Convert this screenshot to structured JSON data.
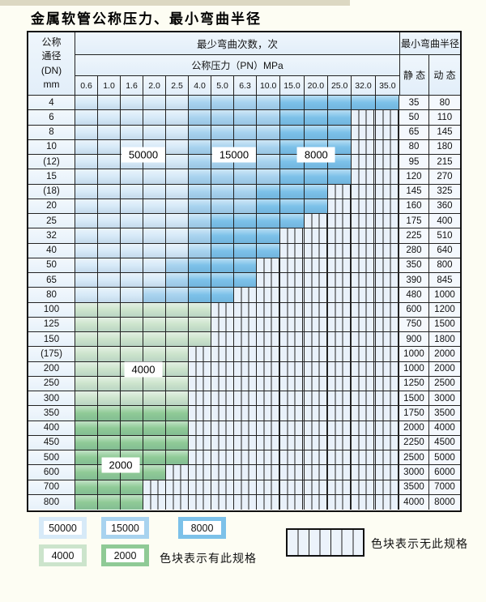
{
  "title": "金属软管公称压力、最小弯曲半径",
  "header": {
    "dn_label_lines": [
      "公称",
      "通径",
      "(DN)",
      "mm"
    ],
    "bend_cycles_label": "最少弯曲次数，次",
    "pressure_label": "公称压力（PN）MPa",
    "radius_label": "最小弯曲半径",
    "static_label": "静 态",
    "dynamic_label": "动 态",
    "pressures": [
      "0.6",
      "1.0",
      "1.6",
      "2.0",
      "2.5",
      "4.0",
      "5.0",
      "6.3",
      "10.0",
      "15.0",
      "20.0",
      "25.0",
      "32.0",
      "35.0"
    ]
  },
  "colors": {
    "c50000": "#d7eaf8",
    "c15000": "#a8d3ef",
    "c8000": "#7cc1e9",
    "c4000": "#cce4cc",
    "c2000": "#8fca96",
    "hatch": "#e9f1fa",
    "header": "#e2eef9",
    "grid": "#222222"
  },
  "rows": [
    {
      "dn": "4",
      "static": "35",
      "dynamic": "80",
      "bands": [
        [
          "c50000",
          5
        ],
        [
          "c15000",
          4
        ],
        [
          "c8000",
          5
        ]
      ]
    },
    {
      "dn": "6",
      "static": "50",
      "dynamic": "110",
      "bands": [
        [
          "c50000",
          5
        ],
        [
          "c15000",
          4
        ],
        [
          "c8000",
          3
        ]
      ]
    },
    {
      "dn": "8",
      "static": "65",
      "dynamic": "145",
      "bands": [
        [
          "c50000",
          5
        ],
        [
          "c15000",
          4
        ],
        [
          "c8000",
          3
        ]
      ]
    },
    {
      "dn": "10",
      "static": "80",
      "dynamic": "180",
      "bands": [
        [
          "c50000",
          5
        ],
        [
          "c15000",
          4
        ],
        [
          "c8000",
          3
        ]
      ]
    },
    {
      "dn": "(12)",
      "static": "95",
      "dynamic": "215",
      "bands": [
        [
          "c50000",
          5
        ],
        [
          "c15000",
          4
        ],
        [
          "c8000",
          3
        ]
      ]
    },
    {
      "dn": "15",
      "static": "120",
      "dynamic": "270",
      "bands": [
        [
          "c50000",
          5
        ],
        [
          "c15000",
          4
        ],
        [
          "c8000",
          3
        ]
      ]
    },
    {
      "dn": "(18)",
      "static": "145",
      "dynamic": "325",
      "bands": [
        [
          "c50000",
          5
        ],
        [
          "c15000",
          3
        ],
        [
          "c8000",
          3
        ]
      ]
    },
    {
      "dn": "20",
      "static": "160",
      "dynamic": "360",
      "bands": [
        [
          "c50000",
          5
        ],
        [
          "c15000",
          3
        ],
        [
          "c8000",
          3
        ]
      ]
    },
    {
      "dn": "25",
      "static": "175",
      "dynamic": "400",
      "bands": [
        [
          "c50000",
          5
        ],
        [
          "c15000",
          1
        ],
        [
          "c8000",
          4
        ]
      ]
    },
    {
      "dn": "32",
      "static": "225",
      "dynamic": "510",
      "bands": [
        [
          "c50000",
          5
        ],
        [
          "c15000",
          1
        ],
        [
          "c8000",
          3
        ]
      ]
    },
    {
      "dn": "40",
      "static": "280",
      "dynamic": "640",
      "bands": [
        [
          "c50000",
          5
        ],
        [
          "c15000",
          1
        ],
        [
          "c8000",
          3
        ]
      ]
    },
    {
      "dn": "50",
      "static": "350",
      "dynamic": "800",
      "bands": [
        [
          "c50000",
          4
        ],
        [
          "c15000",
          1
        ],
        [
          "c8000",
          3
        ]
      ]
    },
    {
      "dn": "65",
      "static": "390",
      "dynamic": "845",
      "bands": [
        [
          "c50000",
          4
        ],
        [
          "c15000",
          1
        ],
        [
          "c8000",
          3
        ]
      ]
    },
    {
      "dn": "80",
      "static": "480",
      "dynamic": "1000",
      "bands": [
        [
          "c50000",
          3
        ],
        [
          "c15000",
          2
        ],
        [
          "c8000",
          2
        ]
      ]
    },
    {
      "dn": "100",
      "static": "600",
      "dynamic": "1200",
      "bands": [
        [
          "c4000",
          6
        ]
      ]
    },
    {
      "dn": "125",
      "static": "750",
      "dynamic": "1500",
      "bands": [
        [
          "c4000",
          6
        ]
      ]
    },
    {
      "dn": "150",
      "static": "900",
      "dynamic": "1800",
      "bands": [
        [
          "c4000",
          6
        ]
      ]
    },
    {
      "dn": "(175)",
      "static": "1000",
      "dynamic": "2000",
      "bands": [
        [
          "c4000",
          5
        ]
      ]
    },
    {
      "dn": "200",
      "static": "1000",
      "dynamic": "2000",
      "bands": [
        [
          "c4000",
          5
        ]
      ]
    },
    {
      "dn": "250",
      "static": "1250",
      "dynamic": "2500",
      "bands": [
        [
          "c4000",
          5
        ]
      ]
    },
    {
      "dn": "300",
      "static": "1500",
      "dynamic": "3000",
      "bands": [
        [
          "c4000",
          5
        ]
      ]
    },
    {
      "dn": "350",
      "static": "1750",
      "dynamic": "3500",
      "bands": [
        [
          "c2000",
          5
        ]
      ]
    },
    {
      "dn": "400",
      "static": "2000",
      "dynamic": "4000",
      "bands": [
        [
          "c2000",
          5
        ]
      ]
    },
    {
      "dn": "450",
      "static": "2250",
      "dynamic": "4500",
      "bands": [
        [
          "c2000",
          5
        ]
      ]
    },
    {
      "dn": "500",
      "static": "2500",
      "dynamic": "5000",
      "bands": [
        [
          "c2000",
          5
        ]
      ]
    },
    {
      "dn": "600",
      "static": "3000",
      "dynamic": "6000",
      "bands": [
        [
          "c2000",
          4
        ]
      ]
    },
    {
      "dn": "700",
      "static": "3500",
      "dynamic": "7000",
      "bands": [
        [
          "c2000",
          3
        ]
      ]
    },
    {
      "dn": "800",
      "static": "4000",
      "dynamic": "8000",
      "bands": [
        [
          "c2000",
          3
        ]
      ]
    }
  ],
  "overlays": [
    {
      "text": "50000",
      "rows": [
        3,
        4
      ],
      "cols": [
        2,
        3
      ]
    },
    {
      "text": "15000",
      "rows": [
        3,
        4
      ],
      "cols": [
        6,
        7
      ]
    },
    {
      "text": "8000",
      "rows": [
        3,
        4
      ],
      "cols": [
        10,
        10
      ]
    },
    {
      "text": "4000",
      "rows": [
        18,
        18
      ],
      "cols": [
        2,
        3
      ]
    },
    {
      "text": "2000",
      "rows": [
        24,
        25
      ],
      "cols": [
        1,
        2
      ]
    }
  ],
  "legend": {
    "row1": [
      {
        "label": "50000",
        "color": "c50000"
      },
      {
        "label": "15000",
        "color": "c15000"
      },
      {
        "label": "8000",
        "color": "c8000"
      }
    ],
    "row2": [
      {
        "label": "4000",
        "color": "c4000"
      },
      {
        "label": "2000",
        "color": "c2000"
      }
    ],
    "has_text": "色块表示有此规格",
    "none_text": "色块表示无此规格"
  }
}
